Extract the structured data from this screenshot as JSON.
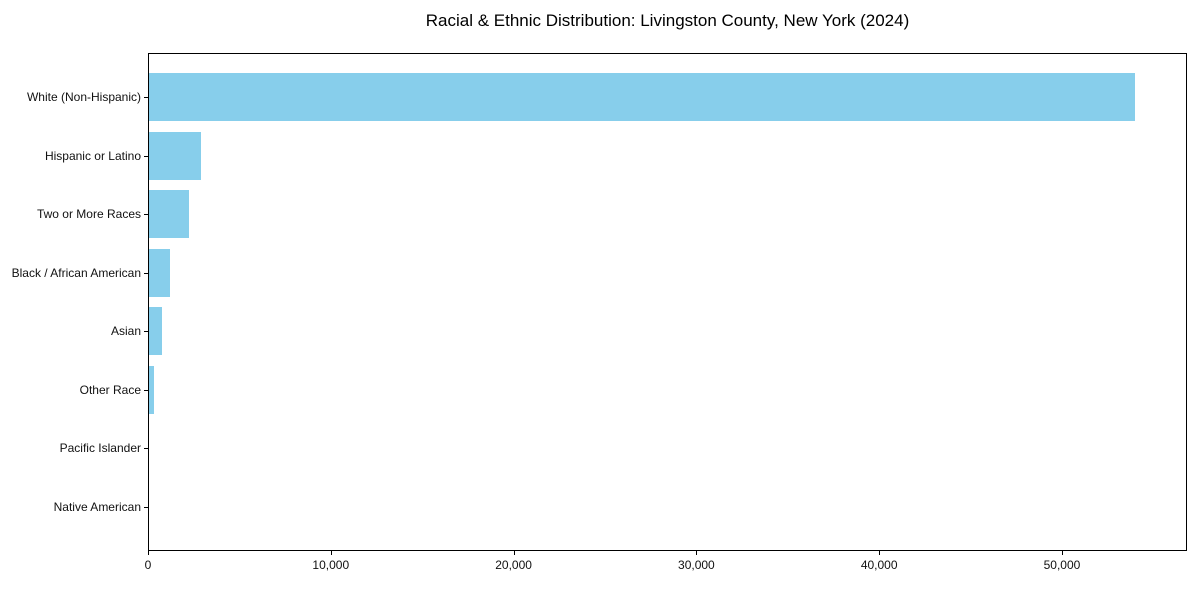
{
  "chart_data": {
    "type": "bar",
    "orientation": "horizontal",
    "title": "Racial & Ethnic Distribution: Livingston County, New York (2024)",
    "categories": [
      "White (Non-Hispanic)",
      "Hispanic or Latino",
      "Two or More Races",
      "Black / African American",
      "Asian",
      "Other Race",
      "Pacific Islander",
      "Native American"
    ],
    "values": [
      54000,
      2900,
      2250,
      1200,
      770,
      330,
      40,
      25
    ],
    "bar_color": "#87CEEB",
    "xlabel": "",
    "ylabel": "",
    "xlim": [
      0,
      56840
    ],
    "xticks": {
      "values": [
        0,
        10000,
        20000,
        30000,
        40000,
        50000
      ],
      "labels": [
        "0",
        "10,000",
        "20,000",
        "30,000",
        "40,000",
        "50,000"
      ]
    },
    "grid": false,
    "legend": "none"
  }
}
